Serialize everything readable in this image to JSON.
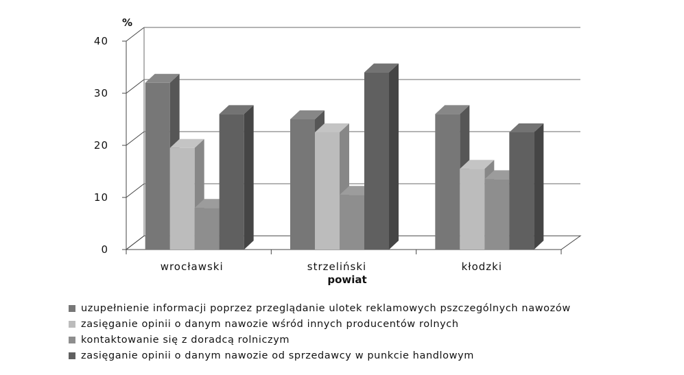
{
  "chart_data": {
    "type": "bar",
    "variant": "3d-clustered-column",
    "title": "",
    "ylabel": "%",
    "xlabel": "powiat",
    "ylim": [
      0,
      40
    ],
    "yticks": [
      0,
      10,
      20,
      30,
      40
    ],
    "ytick_labels": [
      "0",
      "10",
      "20",
      "30",
      "40"
    ],
    "grid": true,
    "categories": [
      "wrocławski",
      "strzeliński",
      "kłodzki"
    ],
    "series": [
      {
        "name": "uzupełnienie informacji poprzez przeglądanie ulotek reklamowych pszczególnych nawozów",
        "color": "#777777",
        "values": [
          32,
          25,
          26
        ]
      },
      {
        "name": "zasięganie opinii o danym nawozie wśród innych producentów rolnych",
        "color": "#bcbcbc",
        "values": [
          19.5,
          22.5,
          15.5
        ]
      },
      {
        "name": "kontaktowanie się z doradcą rolniczym",
        "color": "#8e8e8e",
        "values": [
          8,
          10.5,
          13.5
        ]
      },
      {
        "name": "zasięganie opinii o danym nawozie od sprzedawcy w punkcie handlowym",
        "color": "#606060",
        "values": [
          26,
          34,
          22.5
        ]
      }
    ],
    "legend_position": "bottom-left"
  }
}
